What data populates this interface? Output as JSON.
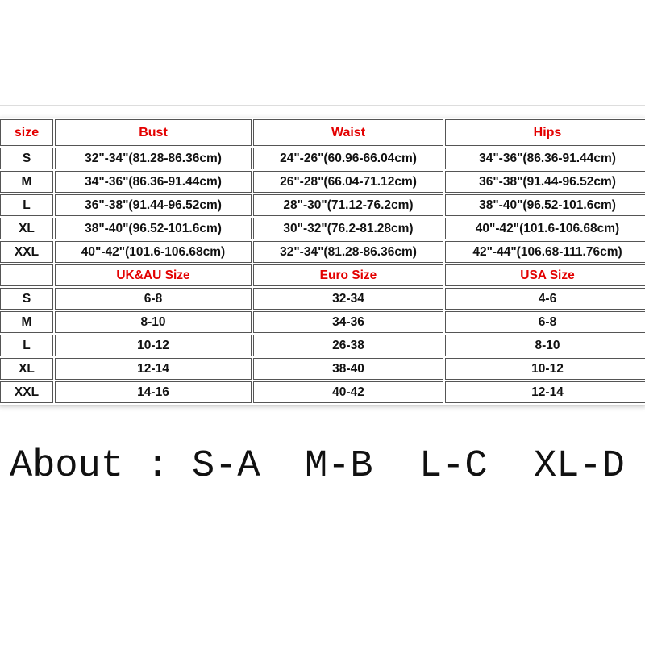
{
  "table": {
    "header": [
      "size",
      "Bust",
      "Waist",
      "Hips"
    ],
    "rows": [
      [
        "S",
        "32\"-34\"(81.28-86.36cm)",
        "24\"-26\"(60.96-66.04cm)",
        "34\"-36\"(86.36-91.44cm)"
      ],
      [
        "M",
        "34\"-36\"(86.36-91.44cm)",
        "26\"-28\"(66.04-71.12cm)",
        "36\"-38\"(91.44-96.52cm)"
      ],
      [
        "L",
        "36\"-38\"(91.44-96.52cm)",
        "28\"-30\"(71.12-76.2cm)",
        "38\"-40\"(96.52-101.6cm)"
      ],
      [
        "XL",
        "38\"-40\"(96.52-101.6cm)",
        "30\"-32\"(76.2-81.28cm)",
        "40\"-42\"(101.6-106.68cm)"
      ],
      [
        "XXL",
        "40\"-42\"(101.6-106.68cm)",
        "32\"-34\"(81.28-86.36cm)",
        "42\"-44\"(106.68-111.76cm)"
      ]
    ],
    "header2": [
      "UK&AU Size",
      "Euro Size",
      "USA Size"
    ],
    "rows2": [
      [
        "S",
        "6-8",
        "32-34",
        "4-6"
      ],
      [
        "M",
        "8-10",
        "34-36",
        "6-8"
      ],
      [
        "L",
        "10-12",
        "26-38",
        "8-10"
      ],
      [
        "XL",
        "12-14",
        "38-40",
        "10-12"
      ],
      [
        "XXL",
        "14-16",
        "40-42",
        "12-14"
      ]
    ]
  },
  "note": {
    "label": "About :",
    "items": [
      "S-A",
      "M-B",
      "L-C",
      "XL-D"
    ]
  }
}
